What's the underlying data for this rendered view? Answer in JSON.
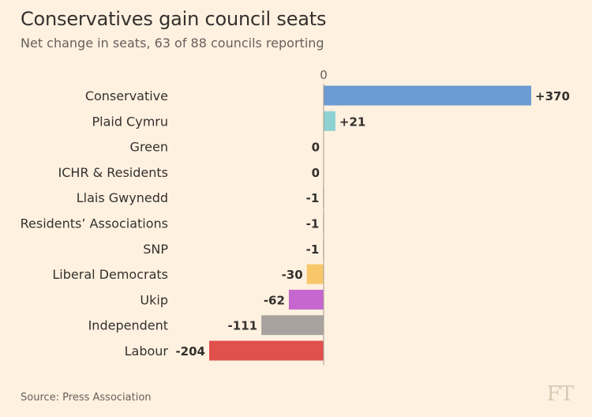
{
  "chart_data": {
    "type": "bar",
    "orientation": "horizontal",
    "title": "Conservatives gain council seats",
    "subtitle": "Net change in seats, 63 of 88 councils reporting",
    "categories": [
      "Conservative",
      "Plaid Cymru",
      "Green",
      "ICHR & Residents",
      "Llais Gwynedd",
      "Residents’ Associations",
      "SNP",
      "Liberal Democrats",
      "Ukip",
      "Independent",
      "Labour"
    ],
    "values": [
      370,
      21,
      0,
      0,
      -1,
      -1,
      -1,
      -30,
      -62,
      -111,
      -204
    ],
    "value_labels": [
      "+370",
      "+21",
      "0",
      "0",
      "-1",
      "-1",
      "-1",
      "-30",
      "-62",
      "-111",
      "-204"
    ],
    "bar_colors": [
      "#6a9bd1",
      "#8fd1d2",
      "#a6a6a6",
      "#a6a6a6",
      "#a6a6a6",
      "#a6a6a6",
      "#a6a6a6",
      "#f7c76a",
      "#c666cf",
      "#a8a39e",
      "#e0504d"
    ],
    "zero_label": "0",
    "xlim": [
      -204,
      370
    ],
    "grid": false,
    "source": "Source: Press Association"
  },
  "branding": {
    "logo": "FT"
  },
  "colors": {
    "background": "#fff1e0",
    "axis": "#a59b90",
    "text": "#33302e"
  }
}
